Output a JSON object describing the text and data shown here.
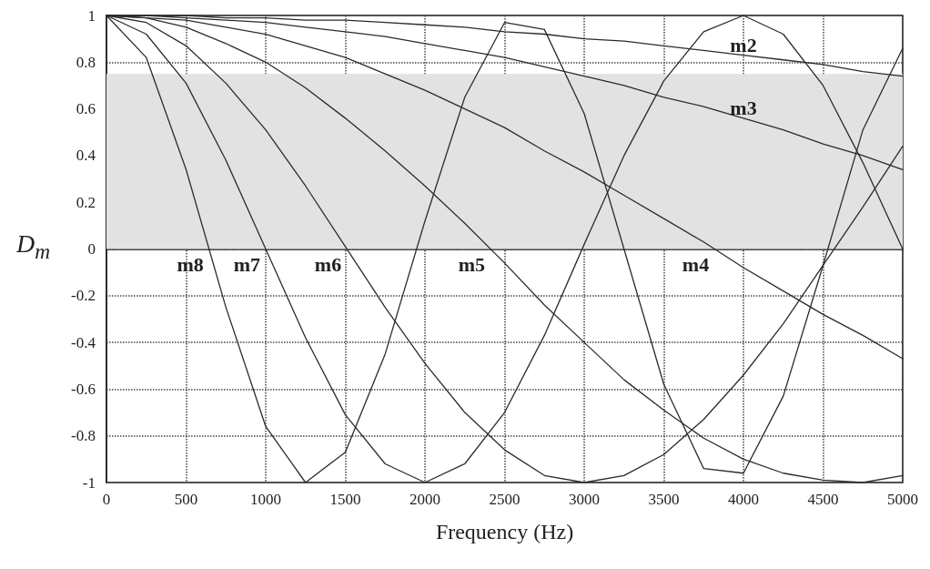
{
  "chart_data": {
    "type": "line",
    "xlabel": "Frequency (Hz)",
    "ylabel": "D$_{m}$",
    "x": [
      0,
      250,
      500,
      750,
      1000,
      1250,
      1500,
      1750,
      2000,
      2250,
      2500,
      2750,
      3000,
      3250,
      3500,
      3750,
      4000,
      4250,
      4500,
      4750,
      5000
    ],
    "series": [
      {
        "name": "m2",
        "color": "#2b2b2b",
        "values": [
          1,
          1,
          1,
          0.99,
          0.99,
          0.98,
          0.98,
          0.97,
          0.96,
          0.95,
          0.93,
          0.92,
          0.9,
          0.89,
          0.87,
          0.85,
          0.83,
          0.81,
          0.79,
          0.76,
          0.74
        ]
      },
      {
        "name": "m3",
        "color": "#2b2b2b",
        "values": [
          1,
          1,
          0.99,
          0.98,
          0.97,
          0.95,
          0.93,
          0.91,
          0.88,
          0.85,
          0.82,
          0.78,
          0.74,
          0.7,
          0.65,
          0.61,
          0.56,
          0.51,
          0.45,
          0.4,
          0.34
        ]
      },
      {
        "name": "m4",
        "color": "#2b2b2b",
        "values": [
          1,
          0.99,
          0.98,
          0.95,
          0.92,
          0.87,
          0.82,
          0.75,
          0.68,
          0.6,
          0.52,
          0.42,
          0.33,
          0.23,
          0.13,
          0.03,
          -0.08,
          -0.18,
          -0.28,
          -0.37,
          -0.47
        ]
      },
      {
        "name": "m5",
        "color": "#2b2b2b",
        "values": [
          1,
          0.99,
          0.95,
          0.88,
          0.8,
          0.69,
          0.56,
          0.42,
          0.27,
          0.11,
          -0.06,
          -0.24,
          -0.4,
          -0.56,
          -0.69,
          -0.81,
          -0.9,
          -0.96,
          -0.99,
          -1,
          -0.97
        ]
      },
      {
        "name": "m6",
        "color": "#2b2b2b",
        "values": [
          1,
          0.97,
          0.87,
          0.71,
          0.51,
          0.27,
          0.01,
          -0.25,
          -0.49,
          -0.7,
          -0.86,
          -0.97,
          -1,
          -0.97,
          -0.88,
          -0.73,
          -0.54,
          -0.32,
          -0.07,
          0.18,
          0.44
        ]
      },
      {
        "name": "m7",
        "color": "#2b2b2b",
        "values": [
          1,
          0.92,
          0.71,
          0.38,
          0,
          -0.38,
          -0.71,
          -0.92,
          -1,
          -0.92,
          -0.7,
          -0.37,
          0.02,
          0.4,
          0.72,
          0.93,
          1,
          0.92,
          0.7,
          0.37,
          0
        ]
      },
      {
        "name": "m8",
        "color": "#2b2b2b",
        "values": [
          1,
          0.82,
          0.34,
          -0.25,
          -0.76,
          -1,
          -0.87,
          -0.45,
          0.12,
          0.65,
          0.97,
          0.94,
          0.58,
          0,
          -0.58,
          -0.94,
          -0.96,
          -0.63,
          -0.07,
          0.51,
          0.86
        ]
      }
    ],
    "xlim": [
      0,
      5000
    ],
    "xticks": [
      0,
      500,
      1000,
      1500,
      2000,
      2500,
      3000,
      3500,
      4000,
      4500,
      5000
    ],
    "ylim": [
      -1,
      1
    ],
    "yticks": [
      -1,
      -0.8,
      -0.6,
      -0.4,
      -0.2,
      0,
      0.2,
      0.4,
      0.6,
      0.8,
      1
    ],
    "bands": [
      {
        "axis": "y",
        "from": 0,
        "to": 0.75,
        "color": "#e2e2e2"
      }
    ],
    "grid": true,
    "legend": false,
    "line_style": "solid",
    "marker": "none"
  }
}
